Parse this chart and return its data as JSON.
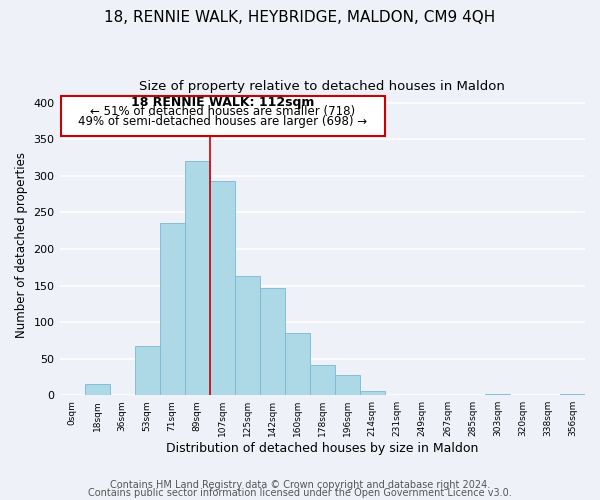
{
  "title1": "18, RENNIE WALK, HEYBRIDGE, MALDON, CM9 4QH",
  "title2": "Size of property relative to detached houses in Maldon",
  "xlabel": "Distribution of detached houses by size in Maldon",
  "ylabel": "Number of detached properties",
  "bin_labels": [
    "0sqm",
    "18sqm",
    "36sqm",
    "53sqm",
    "71sqm",
    "89sqm",
    "107sqm",
    "125sqm",
    "142sqm",
    "160sqm",
    "178sqm",
    "196sqm",
    "214sqm",
    "231sqm",
    "249sqm",
    "267sqm",
    "285sqm",
    "303sqm",
    "320sqm",
    "338sqm",
    "356sqm"
  ],
  "bar_heights": [
    0,
    15,
    0,
    68,
    236,
    320,
    293,
    163,
    147,
    85,
    42,
    27,
    6,
    0,
    0,
    0,
    0,
    2,
    0,
    0,
    2
  ],
  "bar_color": "#add8e6",
  "bar_edge_color": "#7ab8d4",
  "property_line_x": 5.5,
  "property_line_color": "#cc0000",
  "annotation_title": "18 RENNIE WALK: 112sqm",
  "annotation_line1": "← 51% of detached houses are smaller (718)",
  "annotation_line2": "49% of semi-detached houses are larger (698) →",
  "annotation_box_color": "#ffffff",
  "annotation_box_edge": "#cc0000",
  "ylim": [
    0,
    410
  ],
  "yticks": [
    0,
    50,
    100,
    150,
    200,
    250,
    300,
    350,
    400
  ],
  "footer1": "Contains HM Land Registry data © Crown copyright and database right 2024.",
  "footer2": "Contains public sector information licensed under the Open Government Licence v3.0.",
  "background_color": "#eef2f8",
  "grid_color": "#ffffff",
  "title1_fontsize": 11,
  "title2_fontsize": 9.5,
  "xlabel_fontsize": 9,
  "ylabel_fontsize": 8.5,
  "footer_fontsize": 7
}
